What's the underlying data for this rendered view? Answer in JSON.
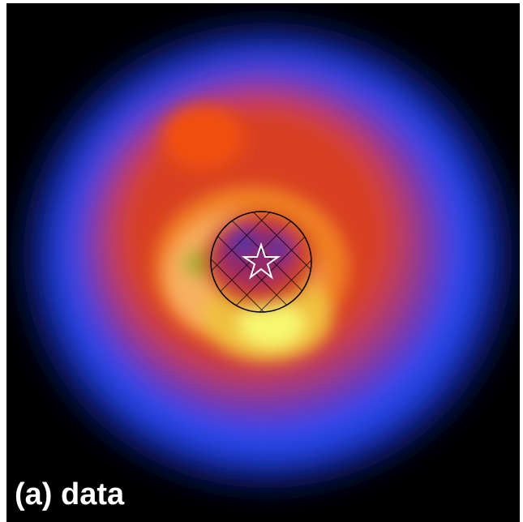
{
  "label": "(a) data"
}
